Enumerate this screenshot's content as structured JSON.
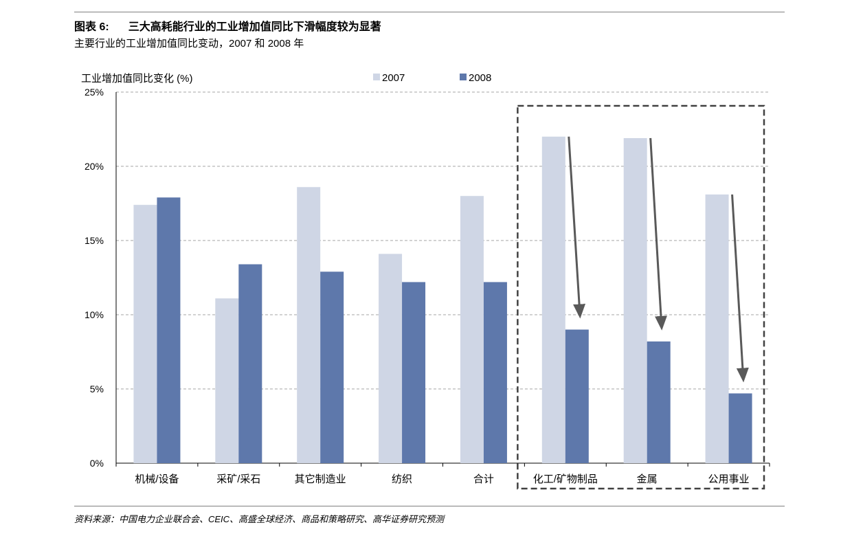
{
  "header": {
    "figure_label": "图表 6:",
    "title": "三大高耗能行业的工业增加值同比下滑幅度较为显著",
    "subtitle": "主要行业的工业增加值同比变动，2007 和 2008 年"
  },
  "source": "资料来源：中国电力企业联合会、CEIC、高盛全球经济、商品和策略研究、高华证券研究预测",
  "colors": {
    "s2007": "#cfd6e5",
    "s2008": "#5e78ab",
    "grid": "#a6a6a6",
    "arrow": "#595959",
    "box": "#404040"
  },
  "chart_data": {
    "type": "bar",
    "ylabel": "工业增加值同比变化 (%)",
    "ylim": [
      0,
      25
    ],
    "yticks": [
      0,
      5,
      10,
      15,
      20,
      25
    ],
    "ytick_labels": [
      "0%",
      "5%",
      "10%",
      "15%",
      "20%",
      "25%"
    ],
    "grid": "horizontal dashed",
    "legend": "top",
    "categories": [
      "机械/设备",
      "采矿/采石",
      "其它制造业",
      "纺织",
      "合计",
      "化工/矿物制品",
      "金属",
      "公用事业"
    ],
    "series": [
      {
        "name": "2007",
        "values": [
          17.4,
          11.1,
          18.6,
          14.1,
          18.0,
          22.0,
          21.9,
          18.1
        ]
      },
      {
        "name": "2008",
        "values": [
          17.9,
          13.4,
          12.9,
          12.2,
          12.2,
          9.0,
          8.2,
          4.7
        ]
      }
    ],
    "annotations": {
      "highlight_box_categories": [
        "化工/矿物制品",
        "金属",
        "公用事业"
      ],
      "arrows": "declines from 2007 to 2008 for highlighted categories"
    }
  }
}
